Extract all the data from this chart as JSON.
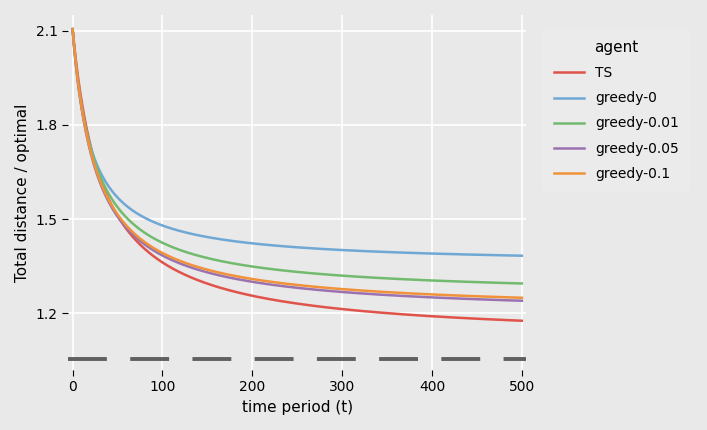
{
  "xlabel": "time period (t)",
  "ylabel": "Total distance / optimal",
  "xlim": [
    -5,
    505
  ],
  "ylim": [
    1.02,
    2.15
  ],
  "yticks": [
    1.2,
    1.5,
    1.8,
    2.1
  ],
  "xticks": [
    0,
    100,
    200,
    300,
    400,
    500
  ],
  "background_color": "#e9e9e9",
  "grid_color": "#ffffff",
  "legend_title": "agent",
  "dashed_line_y": 1.055,
  "dashed_color": "#606060",
  "series": [
    {
      "label": "TS",
      "color": "#e0534a",
      "end": 1.115,
      "decay": 0.03
    },
    {
      "label": "greedy-0",
      "color": "#6fa8d4",
      "end": 1.355,
      "decay": 0.05
    },
    {
      "label": "greedy-0.01",
      "color": "#72bb6e",
      "end": 1.255,
      "decay": 0.04
    },
    {
      "label": "greedy-0.05",
      "color": "#9b72b0",
      "end": 1.195,
      "decay": 0.038
    },
    {
      "label": "greedy-0.1",
      "color": "#f0923a",
      "end": 1.205,
      "decay": 0.038
    }
  ],
  "start_val": 2.105
}
